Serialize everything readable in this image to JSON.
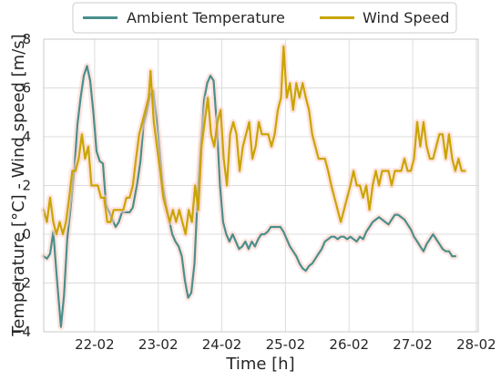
{
  "chart_data": {
    "type": "line",
    "title": "",
    "xlabel": "Time [h]",
    "ylabel": "Temperature [°C] - Wind speed [m/s]",
    "xlim": [
      21.2,
      28.03
    ],
    "ylim": [
      -4,
      8
    ],
    "x_ticks": [
      22,
      23,
      24,
      25,
      26,
      27,
      28
    ],
    "x_tick_labels": [
      "22-02",
      "23-02",
      "24-02",
      "25-02",
      "26-02",
      "27-02",
      "28-02"
    ],
    "y_ticks": [
      -4,
      -2,
      0,
      2,
      4,
      6,
      8
    ],
    "y_tick_labels": [
      "−4",
      "−2",
      "0",
      "2",
      "4",
      "6",
      "8"
    ],
    "grid": true,
    "legend_position": "top",
    "series": [
      {
        "name": "Ambient Temperature",
        "color": "#4a8f8c",
        "glow": "#ffcfc7",
        "points": [
          [
            21.2,
            -0.9
          ],
          [
            21.25,
            -1.0
          ],
          [
            21.3,
            -0.8
          ],
          [
            21.35,
            0.1
          ],
          [
            21.4,
            -1.6
          ],
          [
            21.47,
            -3.8
          ],
          [
            21.52,
            -2.5
          ],
          [
            21.57,
            -0.2
          ],
          [
            21.62,
            1.0
          ],
          [
            21.68,
            2.6
          ],
          [
            21.73,
            4.5
          ],
          [
            21.78,
            5.6
          ],
          [
            21.83,
            6.5
          ],
          [
            21.88,
            6.9
          ],
          [
            21.93,
            6.3
          ],
          [
            21.98,
            5.0
          ],
          [
            22.03,
            3.4
          ],
          [
            22.08,
            3.0
          ],
          [
            22.13,
            2.9
          ],
          [
            22.18,
            1.2
          ],
          [
            22.23,
            0.9
          ],
          [
            22.28,
            0.6
          ],
          [
            22.33,
            0.3
          ],
          [
            22.38,
            0.5
          ],
          [
            22.43,
            0.9
          ],
          [
            22.5,
            0.9
          ],
          [
            22.55,
            0.9
          ],
          [
            22.6,
            1.1
          ],
          [
            22.67,
            2.1
          ],
          [
            22.72,
            3.0
          ],
          [
            22.77,
            4.5
          ],
          [
            22.82,
            5.0
          ],
          [
            22.87,
            5.7
          ],
          [
            22.92,
            5.9
          ],
          [
            22.97,
            4.8
          ],
          [
            23.02,
            3.5
          ],
          [
            23.07,
            2.0
          ],
          [
            23.12,
            1.2
          ],
          [
            23.17,
            0.6
          ],
          [
            23.22,
            0.0
          ],
          [
            23.27,
            -0.3
          ],
          [
            23.32,
            -0.5
          ],
          [
            23.37,
            -0.9
          ],
          [
            23.42,
            -1.9
          ],
          [
            23.47,
            -2.6
          ],
          [
            23.52,
            -2.4
          ],
          [
            23.57,
            -1.2
          ],
          [
            23.62,
            1.6
          ],
          [
            23.67,
            3.6
          ],
          [
            23.72,
            5.5
          ],
          [
            23.77,
            6.2
          ],
          [
            23.82,
            6.5
          ],
          [
            23.87,
            6.3
          ],
          [
            23.92,
            4.5
          ],
          [
            23.97,
            2.0
          ],
          [
            24.02,
            0.5
          ],
          [
            24.07,
            0.0
          ],
          [
            24.12,
            -0.3
          ],
          [
            24.17,
            0.0
          ],
          [
            24.22,
            -0.3
          ],
          [
            24.27,
            -0.6
          ],
          [
            24.32,
            -0.5
          ],
          [
            24.37,
            -0.3
          ],
          [
            24.42,
            -0.6
          ],
          [
            24.47,
            -0.3
          ],
          [
            24.52,
            -0.5
          ],
          [
            24.57,
            -0.2
          ],
          [
            24.62,
            0.0
          ],
          [
            24.67,
            0.0
          ],
          [
            24.72,
            0.1
          ],
          [
            24.77,
            0.3
          ],
          [
            24.82,
            0.3
          ],
          [
            24.87,
            0.3
          ],
          [
            24.92,
            0.3
          ],
          [
            24.97,
            0.1
          ],
          [
            25.02,
            -0.2
          ],
          [
            25.07,
            -0.5
          ],
          [
            25.12,
            -0.7
          ],
          [
            25.17,
            -0.9
          ],
          [
            25.22,
            -1.2
          ],
          [
            25.27,
            -1.4
          ],
          [
            25.32,
            -1.5
          ],
          [
            25.37,
            -1.3
          ],
          [
            25.42,
            -1.2
          ],
          [
            25.47,
            -1.0
          ],
          [
            25.52,
            -0.8
          ],
          [
            25.57,
            -0.6
          ],
          [
            25.62,
            -0.3
          ],
          [
            25.67,
            -0.2
          ],
          [
            25.72,
            -0.1
          ],
          [
            25.77,
            -0.1
          ],
          [
            25.82,
            -0.2
          ],
          [
            25.87,
            -0.1
          ],
          [
            25.92,
            -0.1
          ],
          [
            25.97,
            -0.2
          ],
          [
            26.02,
            -0.1
          ],
          [
            26.07,
            -0.2
          ],
          [
            26.12,
            -0.3
          ],
          [
            26.17,
            -0.1
          ],
          [
            26.22,
            -0.2
          ],
          [
            26.27,
            0.1
          ],
          [
            26.32,
            0.3
          ],
          [
            26.37,
            0.5
          ],
          [
            26.42,
            0.6
          ],
          [
            26.47,
            0.7
          ],
          [
            26.52,
            0.6
          ],
          [
            26.57,
            0.5
          ],
          [
            26.62,
            0.4
          ],
          [
            26.67,
            0.6
          ],
          [
            26.72,
            0.8
          ],
          [
            26.77,
            0.8
          ],
          [
            26.82,
            0.7
          ],
          [
            26.87,
            0.6
          ],
          [
            26.92,
            0.4
          ],
          [
            26.97,
            0.2
          ],
          [
            27.02,
            -0.1
          ],
          [
            27.07,
            -0.3
          ],
          [
            27.12,
            -0.5
          ],
          [
            27.17,
            -0.7
          ],
          [
            27.22,
            -0.4
          ],
          [
            27.27,
            -0.2
          ],
          [
            27.32,
            0.0
          ],
          [
            27.37,
            -0.2
          ],
          [
            27.42,
            -0.4
          ],
          [
            27.47,
            -0.6
          ],
          [
            27.52,
            -0.7
          ],
          [
            27.57,
            -0.7
          ],
          [
            27.62,
            -0.9
          ],
          [
            27.67,
            -0.9
          ]
        ]
      },
      {
        "name": "Wind Speed",
        "color": "#c9a500",
        "glow": "#ffcfc7",
        "points": [
          [
            21.2,
            1.0
          ],
          [
            21.25,
            0.5
          ],
          [
            21.3,
            1.5
          ],
          [
            21.35,
            0.5
          ],
          [
            21.4,
            0.0
          ],
          [
            21.45,
            0.5
          ],
          [
            21.5,
            0.0
          ],
          [
            21.55,
            0.5
          ],
          [
            21.6,
            1.5
          ],
          [
            21.65,
            2.6
          ],
          [
            21.7,
            2.6
          ],
          [
            21.75,
            3.1
          ],
          [
            21.8,
            4.1
          ],
          [
            21.85,
            3.1
          ],
          [
            21.9,
            3.6
          ],
          [
            21.95,
            2.0
          ],
          [
            22.0,
            2.0
          ],
          [
            22.05,
            2.0
          ],
          [
            22.1,
            1.5
          ],
          [
            22.15,
            1.5
          ],
          [
            22.2,
            0.5
          ],
          [
            22.25,
            0.5
          ],
          [
            22.3,
            1.0
          ],
          [
            22.35,
            1.0
          ],
          [
            22.4,
            1.0
          ],
          [
            22.45,
            1.0
          ],
          [
            22.5,
            1.5
          ],
          [
            22.55,
            1.5
          ],
          [
            22.6,
            2.0
          ],
          [
            22.65,
            3.1
          ],
          [
            22.7,
            4.1
          ],
          [
            22.75,
            4.6
          ],
          [
            22.8,
            5.1
          ],
          [
            22.85,
            5.6
          ],
          [
            22.88,
            6.7
          ],
          [
            22.93,
            4.6
          ],
          [
            22.98,
            3.6
          ],
          [
            23.03,
            2.6
          ],
          [
            23.08,
            1.5
          ],
          [
            23.13,
            1.0
          ],
          [
            23.18,
            0.5
          ],
          [
            23.23,
            1.0
          ],
          [
            23.28,
            0.5
          ],
          [
            23.33,
            1.0
          ],
          [
            23.38,
            0.5
          ],
          [
            23.43,
            0.0
          ],
          [
            23.48,
            1.0
          ],
          [
            23.53,
            0.5
          ],
          [
            23.58,
            2.0
          ],
          [
            23.63,
            1.0
          ],
          [
            23.68,
            3.6
          ],
          [
            23.73,
            4.6
          ],
          [
            23.78,
            5.6
          ],
          [
            23.83,
            4.1
          ],
          [
            23.88,
            3.6
          ],
          [
            23.93,
            4.6
          ],
          [
            23.98,
            5.1
          ],
          [
            24.03,
            3.1
          ],
          [
            24.08,
            2.0
          ],
          [
            24.13,
            4.1
          ],
          [
            24.18,
            4.6
          ],
          [
            24.23,
            4.1
          ],
          [
            24.28,
            2.6
          ],
          [
            24.33,
            3.6
          ],
          [
            24.38,
            4.1
          ],
          [
            24.43,
            4.6
          ],
          [
            24.48,
            3.1
          ],
          [
            24.53,
            3.6
          ],
          [
            24.58,
            4.6
          ],
          [
            24.63,
            4.1
          ],
          [
            24.68,
            4.1
          ],
          [
            24.73,
            4.1
          ],
          [
            24.78,
            3.6
          ],
          [
            24.83,
            4.1
          ],
          [
            24.88,
            5.1
          ],
          [
            24.93,
            5.6
          ],
          [
            24.97,
            7.7
          ],
          [
            25.02,
            5.6
          ],
          [
            25.07,
            6.2
          ],
          [
            25.12,
            5.1
          ],
          [
            25.17,
            6.2
          ],
          [
            25.22,
            5.6
          ],
          [
            25.27,
            6.2
          ],
          [
            25.32,
            5.6
          ],
          [
            25.37,
            5.1
          ],
          [
            25.42,
            4.1
          ],
          [
            25.47,
            3.6
          ],
          [
            25.52,
            3.1
          ],
          [
            25.57,
            3.1
          ],
          [
            25.62,
            3.1
          ],
          [
            25.67,
            2.6
          ],
          [
            25.72,
            2.0
          ],
          [
            25.77,
            1.5
          ],
          [
            25.82,
            1.0
          ],
          [
            25.87,
            0.5
          ],
          [
            25.92,
            1.0
          ],
          [
            25.97,
            1.5
          ],
          [
            26.02,
            2.0
          ],
          [
            26.07,
            2.6
          ],
          [
            26.12,
            2.0
          ],
          [
            26.17,
            2.0
          ],
          [
            26.22,
            1.5
          ],
          [
            26.27,
            2.0
          ],
          [
            26.32,
            1.0
          ],
          [
            26.37,
            2.0
          ],
          [
            26.42,
            2.6
          ],
          [
            26.47,
            2.0
          ],
          [
            26.52,
            2.6
          ],
          [
            26.57,
            2.6
          ],
          [
            26.62,
            2.6
          ],
          [
            26.67,
            2.0
          ],
          [
            26.72,
            2.6
          ],
          [
            26.77,
            2.6
          ],
          [
            26.82,
            2.6
          ],
          [
            26.87,
            3.1
          ],
          [
            26.92,
            2.6
          ],
          [
            26.97,
            2.6
          ],
          [
            27.02,
            3.1
          ],
          [
            27.07,
            4.6
          ],
          [
            27.12,
            3.6
          ],
          [
            27.17,
            4.6
          ],
          [
            27.22,
            3.6
          ],
          [
            27.27,
            3.1
          ],
          [
            27.32,
            3.1
          ],
          [
            27.37,
            3.6
          ],
          [
            27.42,
            4.1
          ],
          [
            27.47,
            4.1
          ],
          [
            27.52,
            3.1
          ],
          [
            27.57,
            4.1
          ],
          [
            27.62,
            3.1
          ],
          [
            27.67,
            2.6
          ],
          [
            27.72,
            3.1
          ],
          [
            27.77,
            2.6
          ],
          [
            27.82,
            2.6
          ]
        ]
      }
    ]
  }
}
